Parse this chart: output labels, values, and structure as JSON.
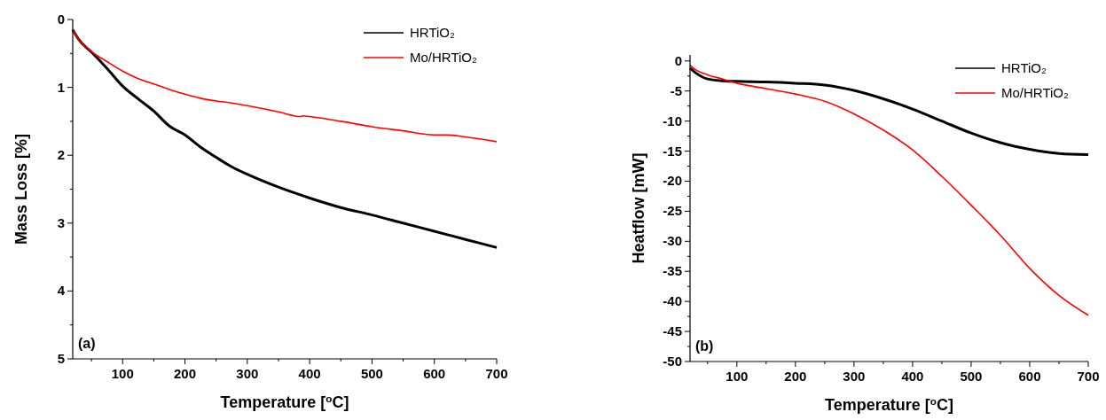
{
  "chart_data": [
    {
      "type": "line",
      "xlabel": "Temperature [$^{o}$C]",
      "ylabel": "Mass Loss [%]",
      "annotations": [
        "(a)"
      ],
      "legend": "top right",
      "grid": false,
      "xlim": [
        20,
        700
      ],
      "xticks": [
        {
          "value": 50,
          "label": null
        },
        100,
        {
          "value": 150,
          "label": null
        },
        200,
        {
          "value": 250,
          "label": null
        },
        300,
        {
          "value": 350,
          "label": null
        },
        400,
        {
          "value": 450,
          "label": null
        },
        500,
        {
          "value": 550,
          "label": null
        },
        600,
        {
          "value": 650,
          "label": null
        },
        700
      ],
      "ylim": [
        5,
        0
      ],
      "yticks": [
        0,
        {
          "value": 0.5,
          "label": null
        },
        1,
        {
          "value": 1.5,
          "label": null
        },
        2,
        {
          "value": 2.5,
          "label": null
        },
        3,
        {
          "value": 3.5,
          "label": null
        },
        4,
        {
          "value": 4.5,
          "label": null
        },
        5
      ],
      "series": [
        {
          "name": "HRTiO₂",
          "color": "#000000",
          "x": [
            20,
            30,
            50,
            75,
            100,
            125,
            150,
            175,
            200,
            225,
            250,
            275,
            300,
            350,
            400,
            450,
            500,
            550,
            600,
            650,
            700
          ],
          "values": [
            0.15,
            0.3,
            0.48,
            0.72,
            0.98,
            1.17,
            1.35,
            1.57,
            1.7,
            1.88,
            2.03,
            2.17,
            2.28,
            2.47,
            2.63,
            2.77,
            2.88,
            3.0,
            3.12,
            3.24,
            3.36
          ]
        },
        {
          "name": "Mo/HRTiO₂",
          "color": "#ff0000",
          "x": [
            20,
            30,
            50,
            75,
            100,
            125,
            150,
            175,
            200,
            225,
            250,
            275,
            300,
            350,
            385,
            390,
            400,
            450,
            500,
            550,
            600,
            620,
            650,
            700
          ],
          "values": [
            0.15,
            0.3,
            0.47,
            0.62,
            0.76,
            0.87,
            0.95,
            1.03,
            1.1,
            1.16,
            1.2,
            1.23,
            1.27,
            1.36,
            1.43,
            1.42,
            1.43,
            1.5,
            1.58,
            1.64,
            1.7,
            1.7,
            1.73,
            1.8
          ]
        }
      ]
    },
    {
      "type": "line",
      "xlabel": "Temperature [$^{o}$C]",
      "ylabel": "Heatflow [mW]",
      "annotations": [
        "(b)"
      ],
      "legend": "top right",
      "grid": false,
      "xlim": [
        20,
        700
      ],
      "xticks": [
        {
          "value": 50,
          "label": null
        },
        100,
        {
          "value": 150,
          "label": null
        },
        200,
        {
          "value": 250,
          "label": null
        },
        300,
        {
          "value": 350,
          "label": null
        },
        400,
        {
          "value": 450,
          "label": null
        },
        500,
        {
          "value": 550,
          "label": null
        },
        600,
        {
          "value": 650,
          "label": null
        },
        700
      ],
      "ylim": [
        -50,
        1
      ],
      "yticks": [
        0,
        {
          "value": -2.5,
          "label": null
        },
        -5,
        {
          "value": -7.5,
          "label": null
        },
        -10,
        {
          "value": -12.5,
          "label": null
        },
        -15,
        {
          "value": -17.5,
          "label": null
        },
        -20,
        {
          "value": -22.5,
          "label": null
        },
        -25,
        {
          "value": -27.5,
          "label": null
        },
        -30,
        {
          "value": -32.5,
          "label": null
        },
        -35,
        {
          "value": -37.5,
          "label": null
        },
        -40,
        {
          "value": -42.5,
          "label": null
        },
        -45,
        {
          "value": -47.5,
          "label": null
        },
        -50
      ],
      "series": [
        {
          "name": "HRTiO₂",
          "color": "#000000",
          "x": [
            20,
            30,
            50,
            75,
            100,
            150,
            200,
            250,
            300,
            350,
            400,
            450,
            500,
            550,
            600,
            650,
            700
          ],
          "values": [
            -1.2,
            -2,
            -3,
            -3.3,
            -3.4,
            -3.5,
            -3.7,
            -4.0,
            -4.9,
            -6.3,
            -8.0,
            -10.0,
            -12.0,
            -13.6,
            -14.7,
            -15.4,
            -15.6
          ]
        },
        {
          "name": "Mo/HRTiO₂",
          "color": "#ff0000",
          "x": [
            20,
            30,
            50,
            75,
            100,
            150,
            200,
            250,
            300,
            350,
            400,
            450,
            500,
            550,
            600,
            650,
            700
          ],
          "values": [
            -0.7,
            -1.5,
            -2.3,
            -3.0,
            -3.7,
            -4.6,
            -5.5,
            -6.7,
            -8.8,
            -11.5,
            -14.8,
            -19.2,
            -24.0,
            -29.0,
            -34.5,
            -39,
            -42.3
          ]
        }
      ]
    }
  ]
}
